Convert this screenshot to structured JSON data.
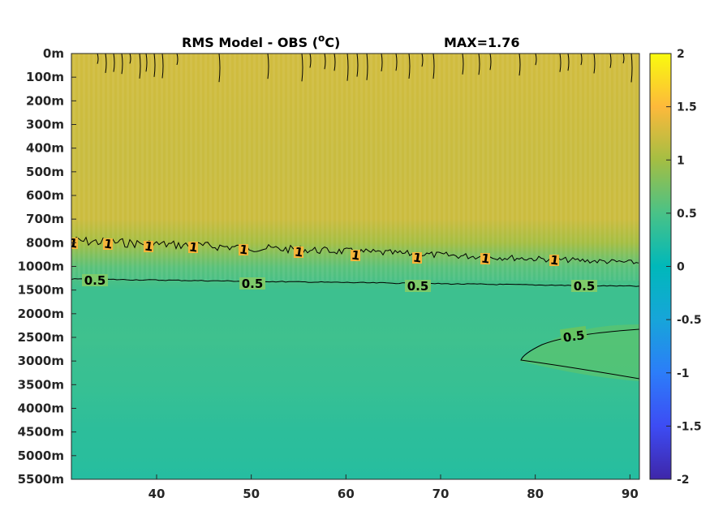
{
  "chart_data": {
    "type": "heatmap",
    "title": "RMS Model - OBS (",
    "title_superscript": "o",
    "title_unit_suffix": "C)",
    "max_label": "MAX=1.76",
    "x": {
      "ticks": [
        40,
        50,
        60,
        70,
        80,
        90
      ],
      "range": [
        31,
        91
      ]
    },
    "y": {
      "depth_levels": [
        "0m",
        "100m",
        "200m",
        "300m",
        "400m",
        "500m",
        "600m",
        "700m",
        "800m",
        "1000m",
        "1500m",
        "2000m",
        "2500m",
        "3000m",
        "3500m",
        "4000m",
        "4500m",
        "5000m",
        "5500m"
      ]
    },
    "colorbar": {
      "range": [
        -2,
        2
      ],
      "ticks": [
        "2",
        "1.5",
        "1",
        "0.5",
        "0",
        "-0.5",
        "-1",
        "-1.5",
        "-2"
      ]
    },
    "field_by_level": [
      1.25,
      1.24,
      1.23,
      1.22,
      1.21,
      1.21,
      1.22,
      1.22,
      1.0,
      0.6,
      0.42,
      0.42,
      0.43,
      0.4,
      0.38,
      0.34,
      0.3,
      0.29,
      0.25
    ],
    "contours": [
      {
        "level": 1,
        "labels": [
          "1",
          "1",
          "1",
          "1",
          "1",
          "1",
          "1",
          "1",
          "1",
          "1"
        ]
      },
      {
        "level": 0.5,
        "labels": [
          "0.5",
          "0.5",
          "0.5",
          "0.5",
          "0.5"
        ]
      },
      {
        "level": 0.5,
        "labels": [
          "0.5"
        ]
      }
    ]
  }
}
